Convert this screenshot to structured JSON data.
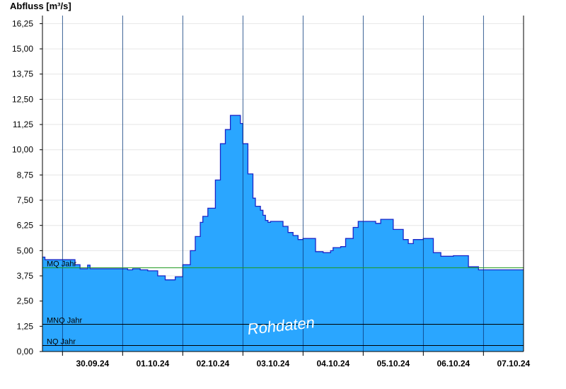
{
  "chart_data": {
    "type": "area",
    "ylabel": "Abfluss [m³/s]",
    "ylim": [
      0,
      16.65
    ],
    "y_ticks": [
      "0,00",
      "1,25",
      "2,50",
      "3,75",
      "5,00",
      "6,25",
      "7,50",
      "8,75",
      "10,00",
      "11,25",
      "12,50",
      "13,75",
      "15,00",
      "16,25"
    ],
    "x_start": "2024-09-29T16:00",
    "x_end": "2024-10-07T16:00",
    "x_tick_labels": [
      "30.09.24",
      "01.10.24",
      "02.10.24",
      "03.10.24",
      "04.10.24",
      "05.10.24",
      "06.10.24",
      "07.10.24"
    ],
    "x_tick_dates": [
      "2024-09-30",
      "2024-10-01",
      "2024-10-02",
      "2024-10-03",
      "2024-10-04",
      "2024-10-05",
      "2024-10-06",
      "2024-10-07"
    ],
    "series": [
      {
        "color": "#2aa6ff",
        "stroke": "#1a26c8",
        "x": [
          "2024-09-29T16:00",
          "2024-09-29T17:00",
          "2024-09-29T19:00",
          "2024-09-29T21:00",
          "2024-09-30T01:00",
          "2024-09-30T03:00",
          "2024-09-30T05:00",
          "2024-09-30T07:00",
          "2024-09-30T09:00",
          "2024-09-30T10:00",
          "2024-09-30T11:00",
          "2024-09-30T14:00",
          "2024-09-30T17:00",
          "2024-09-30T18:00",
          "2024-09-30T21:00",
          "2024-10-01T02:00",
          "2024-10-01T04:00",
          "2024-10-01T05:00",
          "2024-10-01T07:00",
          "2024-10-01T10:00",
          "2024-10-01T14:00",
          "2024-10-01T17:00",
          "2024-10-01T19:00",
          "2024-10-01T21:00",
          "2024-10-02T00:00",
          "2024-10-02T03:00",
          "2024-10-02T05:00",
          "2024-10-02T07:00",
          "2024-10-02T08:00",
          "2024-10-02T10:00",
          "2024-10-02T13:00",
          "2024-10-02T15:00",
          "2024-10-02T17:00",
          "2024-10-02T19:00",
          "2024-10-02T21:00",
          "2024-10-02T23:00",
          "2024-10-03T00:00",
          "2024-10-03T02:00",
          "2024-10-03T04:00",
          "2024-10-03T05:00",
          "2024-10-03T07:00",
          "2024-10-03T08:00",
          "2024-10-03T09:00",
          "2024-10-03T10:00",
          "2024-10-03T11:00",
          "2024-10-03T13:00",
          "2024-10-03T16:00",
          "2024-10-03T18:00",
          "2024-10-03T20:00",
          "2024-10-03T22:00",
          "2024-10-04T00:00",
          "2024-10-04T05:00",
          "2024-10-04T08:00",
          "2024-10-04T11:00",
          "2024-10-04T12:00",
          "2024-10-04T15:00",
          "2024-10-04T17:00",
          "2024-10-04T20:00",
          "2024-10-04T22:00",
          "2024-10-05T00:00",
          "2024-10-05T03:00",
          "2024-10-05T05:00",
          "2024-10-05T07:00",
          "2024-10-05T09:00",
          "2024-10-05T12:00",
          "2024-10-05T16:00",
          "2024-10-05T18:00",
          "2024-10-05T20:00",
          "2024-10-06T00:00",
          "2024-10-06T04:00",
          "2024-10-06T07:00",
          "2024-10-06T09:00",
          "2024-10-06T12:00",
          "2024-10-06T14:00",
          "2024-10-06T18:00",
          "2024-10-06T22:00",
          "2024-10-07T00:00",
          "2024-10-07T03:00",
          "2024-10-07T05:00",
          "2024-10-07T09:00",
          "2024-10-07T11:00",
          "2024-10-07T14:00",
          "2024-10-07T15:00",
          "2024-10-07T16:00"
        ],
        "y": [
          4.68,
          4.55,
          4.55,
          4.55,
          4.55,
          4.55,
          4.3,
          4.1,
          4.1,
          4.28,
          4.1,
          4.1,
          4.1,
          4.1,
          4.1,
          4.05,
          4.1,
          4.1,
          4.05,
          4.0,
          3.75,
          3.55,
          3.55,
          3.7,
          4.3,
          5.0,
          5.7,
          6.4,
          6.7,
          7.1,
          8.5,
          10.3,
          11.0,
          11.7,
          11.7,
          11.3,
          10.3,
          8.8,
          7.6,
          7.2,
          7.0,
          6.75,
          6.5,
          6.4,
          6.45,
          6.45,
          6.2,
          5.9,
          5.75,
          5.55,
          5.6,
          4.95,
          4.9,
          5.0,
          5.15,
          5.2,
          5.6,
          6.15,
          6.45,
          6.45,
          6.45,
          6.35,
          6.55,
          6.55,
          6.05,
          5.55,
          5.35,
          5.55,
          5.6,
          4.9,
          4.72,
          4.72,
          4.75,
          4.75,
          4.2,
          4.05,
          4.05,
          4.05,
          4.05,
          4.05,
          4.05,
          4.05,
          4.05,
          4.05
        ]
      }
    ],
    "reference_lines": [
      {
        "label": "MQ Jahr",
        "value": 4.15,
        "color": "#1f9a1f"
      },
      {
        "label": "MNQ Jahr",
        "value": 1.35,
        "color": "#000000"
      },
      {
        "label": "NQ Jahr",
        "value": 0.3,
        "color": "#000000"
      }
    ],
    "annotation": "Rohdaten"
  }
}
